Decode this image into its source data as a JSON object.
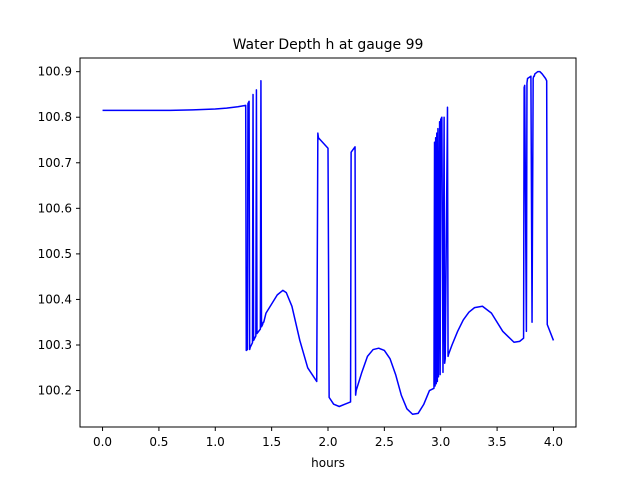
{
  "chart_data": {
    "type": "line",
    "title": "Water Depth h at gauge 99",
    "xlabel": "hours",
    "ylabel": "",
    "xlim": [
      -0.2,
      4.2
    ],
    "ylim": [
      100.12,
      100.93
    ],
    "x_ticks": [
      0.0,
      0.5,
      1.0,
      1.5,
      2.0,
      2.5,
      3.0,
      3.5,
      4.0
    ],
    "x_tick_labels": [
      "0.0",
      "0.5",
      "1.0",
      "1.5",
      "2.0",
      "2.5",
      "3.0",
      "3.5",
      "4.0"
    ],
    "y_ticks": [
      100.2,
      100.3,
      100.4,
      100.5,
      100.6,
      100.7,
      100.8,
      100.9
    ],
    "y_tick_labels": [
      "100.2",
      "100.3",
      "100.4",
      "100.5",
      "100.6",
      "100.7",
      "100.8",
      "100.9"
    ],
    "grid": false,
    "line_color": "#0000ff",
    "series": [
      {
        "x": [
          0.0,
          0.2,
          0.4,
          0.6,
          0.8,
          1.0,
          1.1,
          1.2,
          1.27,
          1.275,
          1.285,
          1.29,
          1.3,
          1.305,
          1.31,
          1.33,
          1.335,
          1.34,
          1.36,
          1.365,
          1.37,
          1.4,
          1.405,
          1.41,
          1.42,
          1.425,
          1.43,
          1.45,
          1.5,
          1.55,
          1.6,
          1.63,
          1.68,
          1.75,
          1.82,
          1.9,
          1.91,
          1.915,
          2.0,
          2.01,
          2.05,
          2.1,
          2.15,
          2.2,
          2.205,
          2.21,
          2.24,
          2.245,
          2.25,
          2.3,
          2.35,
          2.4,
          2.45,
          2.5,
          2.55,
          2.6,
          2.65,
          2.7,
          2.75,
          2.8,
          2.85,
          2.9,
          2.94,
          2.945,
          2.95,
          2.955,
          2.96,
          2.965,
          2.97,
          2.975,
          2.98,
          2.99,
          2.995,
          3.0,
          3.01,
          3.02,
          3.03,
          3.035,
          3.04,
          3.06,
          3.065,
          3.07,
          3.1,
          3.15,
          3.2,
          3.25,
          3.3,
          3.37,
          3.45,
          3.55,
          3.65,
          3.7,
          3.735,
          3.74,
          3.745,
          3.76,
          3.765,
          3.77,
          3.8,
          3.81,
          3.82,
          3.825,
          3.83,
          3.835,
          3.86,
          3.88,
          3.9,
          3.93,
          3.94,
          3.945,
          4.0
        ],
        "y": [
          100.815,
          100.815,
          100.815,
          100.815,
          100.816,
          100.818,
          100.82,
          100.823,
          100.826,
          100.288,
          100.29,
          100.83,
          100.835,
          100.29,
          100.295,
          100.305,
          100.85,
          100.31,
          100.32,
          100.86,
          100.325,
          100.335,
          100.88,
          100.34,
          100.345,
          100.35,
          100.35,
          100.37,
          100.39,
          100.41,
          100.42,
          100.415,
          100.385,
          100.31,
          100.25,
          100.22,
          100.765,
          100.755,
          100.732,
          100.185,
          100.17,
          100.165,
          100.17,
          100.175,
          100.723,
          100.725,
          100.735,
          100.19,
          100.2,
          100.24,
          100.275,
          100.29,
          100.293,
          100.288,
          100.27,
          100.235,
          100.19,
          100.16,
          100.148,
          100.15,
          100.17,
          100.2,
          100.205,
          100.745,
          100.21,
          100.755,
          100.215,
          100.765,
          100.22,
          100.775,
          100.23,
          100.79,
          100.235,
          100.795,
          100.8,
          100.24,
          100.8,
          100.26,
          100.27,
          100.822,
          100.275,
          100.28,
          100.3,
          100.33,
          100.355,
          100.372,
          100.382,
          100.385,
          100.37,
          100.33,
          100.306,
          100.308,
          100.315,
          100.865,
          100.87,
          100.33,
          100.875,
          100.885,
          100.89,
          100.35,
          100.885,
          100.89,
          100.89,
          100.895,
          100.9,
          100.9,
          100.895,
          100.885,
          100.88,
          100.345,
          100.31
        ]
      }
    ]
  }
}
